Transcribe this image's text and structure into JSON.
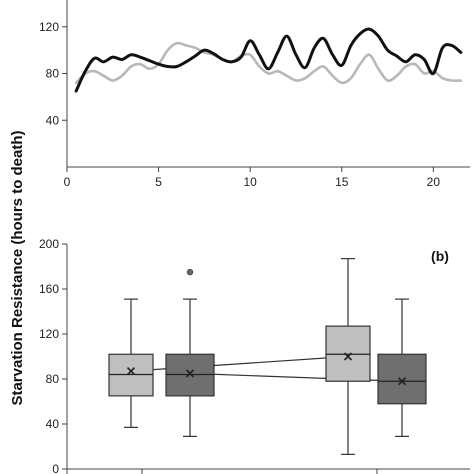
{
  "chart_data": [
    {
      "type": "line",
      "xlim": [
        0,
        22
      ],
      "ylim": [
        0,
        160
      ],
      "x_ticks": [
        "0",
        "5",
        "10",
        "15",
        "20"
      ],
      "y_ticks": [
        "40",
        "80",
        "120"
      ],
      "series": [
        {
          "color": "#111111",
          "x": [
            0.5,
            1.0,
            1.5,
            2.0,
            2.5,
            3.0,
            3.5,
            4.0,
            4.5,
            5.0,
            5.5,
            6.0,
            6.5,
            7.0,
            7.5,
            8.0,
            8.5,
            9.0,
            9.5,
            10.0,
            10.5,
            11.0,
            11.5,
            12.0,
            12.5,
            13.0,
            13.5,
            14.0,
            14.5,
            15.0,
            15.5,
            16.0,
            16.5,
            17.0,
            17.5,
            18.0,
            18.5,
            19.0,
            19.5,
            20.0,
            20.5,
            21.0,
            21.5
          ],
          "y": [
            65,
            82,
            93,
            90,
            94,
            92,
            96,
            94,
            91,
            88,
            86,
            86,
            90,
            95,
            100,
            97,
            92,
            90,
            94,
            108,
            96,
            84,
            98,
            112,
            96,
            85,
            102,
            110,
            96,
            87,
            104,
            114,
            118,
            112,
            100,
            95,
            90,
            96,
            92,
            80,
            102,
            104,
            98
          ]
        },
        {
          "color": "#b8b8b8",
          "x": [
            0.5,
            1.0,
            1.5,
            2.0,
            2.5,
            3.0,
            3.5,
            4.0,
            4.5,
            5.0,
            5.5,
            6.0,
            6.5,
            7.0,
            7.5,
            8.0,
            8.5,
            9.0,
            9.5,
            10.0,
            10.5,
            11.0,
            11.5,
            12.0,
            12.5,
            13.0,
            13.5,
            14.0,
            14.5,
            15.0,
            15.5,
            16.0,
            16.5,
            17.0,
            17.5,
            18.0,
            18.5,
            19.0,
            19.5,
            20.0,
            20.5,
            21.0,
            21.5
          ],
          "y": [
            72,
            80,
            82,
            78,
            74,
            78,
            86,
            88,
            84,
            88,
            100,
            106,
            104,
            102,
            98,
            96,
            92,
            90,
            95,
            96,
            86,
            80,
            82,
            78,
            74,
            76,
            82,
            86,
            78,
            72,
            76,
            88,
            96,
            84,
            74,
            78,
            86,
            88,
            80,
            82,
            76,
            74,
            74
          ]
        }
      ]
    },
    {
      "type": "box",
      "panel_label": "(b)",
      "ylim": [
        0,
        200
      ],
      "y_ticks": [
        "0",
        "40",
        "80",
        "120",
        "160",
        "200"
      ],
      "boxes": [
        {
          "group": 1,
          "color": "#bfbfbf",
          "whisker_low": 37,
          "q1": 65,
          "median": 84,
          "q3": 102,
          "whisker_high": 151,
          "mean": 87,
          "outliers": []
        },
        {
          "group": 1,
          "color": "#6f6f6f",
          "whisker_low": 29,
          "q1": 65,
          "median": 84,
          "q3": 102,
          "whisker_high": 151,
          "mean": 85,
          "outliers": [
            175
          ]
        },
        {
          "group": 2,
          "color": "#bfbfbf",
          "whisker_low": 13,
          "q1": 78,
          "median": 102,
          "q3": 127,
          "whisker_high": 187,
          "mean": 100,
          "outliers": []
        },
        {
          "group": 2,
          "color": "#6f6f6f",
          "whisker_low": 29,
          "q1": 58,
          "median": 78,
          "q3": 102,
          "whisker_high": 151,
          "mean": 78,
          "outliers": []
        }
      ]
    }
  ],
  "labels": {
    "shared_ylabel": "Starvation Resistance  (hours to death)"
  }
}
